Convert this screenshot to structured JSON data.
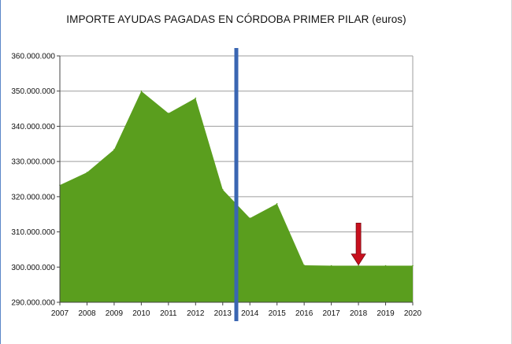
{
  "chart_data": {
    "type": "area",
    "title": "IMPORTE AYUDAS PAGADAS EN CÓRDOBA PRIMER PILAR (euros)",
    "xlabel": "",
    "ylabel": "",
    "categories": [
      "2007",
      "2008",
      "2009",
      "2010",
      "2011",
      "2012",
      "2013",
      "2014",
      "2015",
      "2016",
      "2017",
      "2018",
      "2019",
      "2020"
    ],
    "series": [
      {
        "values": [
          323300000,
          326900000,
          333400000,
          350000000,
          343700000,
          348000000,
          322000000,
          313900000,
          318000000,
          300500000,
          300400000,
          300400000,
          300400000,
          300400000
        ]
      }
    ],
    "ylim": [
      290000000,
      360000000
    ],
    "yticks": [
      290000000,
      300000000,
      310000000,
      320000000,
      330000000,
      340000000,
      350000000,
      360000000
    ],
    "ytick_labels": [
      "290.000.000",
      "300.000.000",
      "310.000.000",
      "320.000.000",
      "330.000.000",
      "340.000.000",
      "350.000.000",
      "360.000.000"
    ],
    "grid": true,
    "colors": {
      "area": "#5a9e1e",
      "grid": "#9e9e9e",
      "divider_line": "#3a66b2",
      "arrow": "#c8101e"
    },
    "annotations": [
      {
        "type": "vertical-line",
        "x": 2013.5
      },
      {
        "type": "down-arrow",
        "x": 2018,
        "y_top": 312500000,
        "y_tip": 300600000
      }
    ]
  }
}
